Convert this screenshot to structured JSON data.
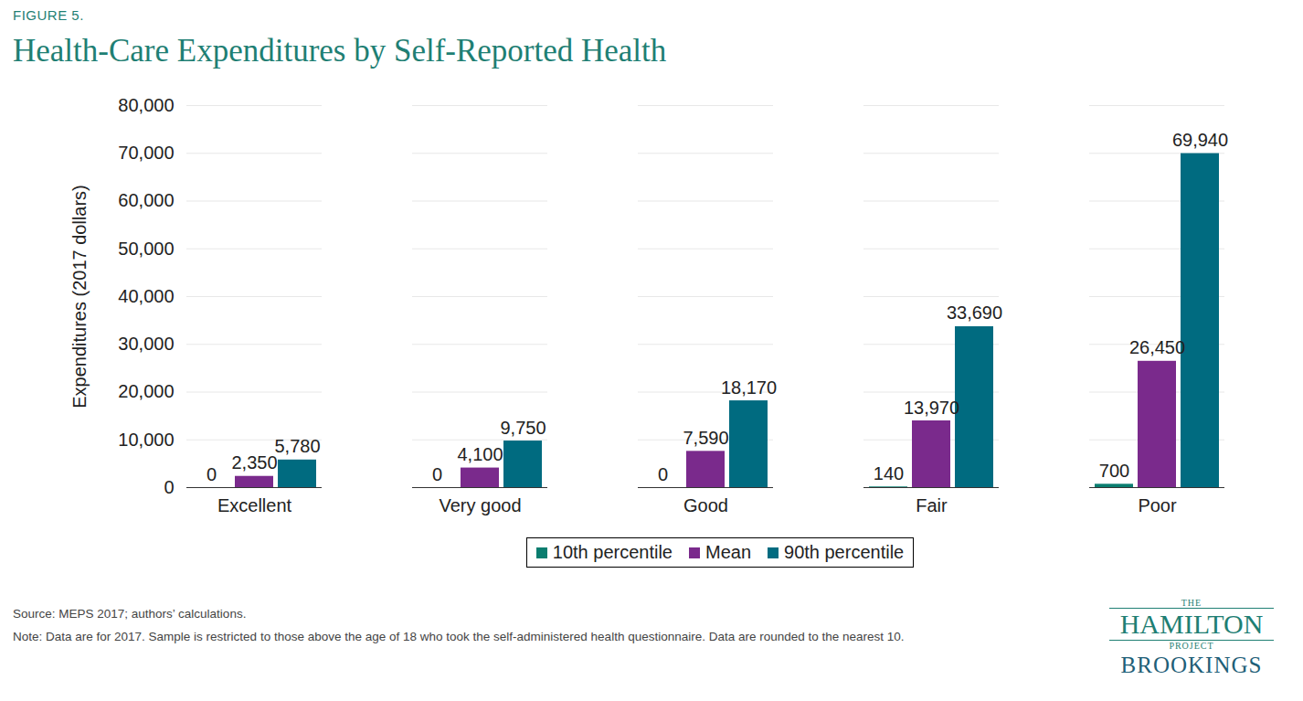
{
  "chart_data": {
    "type": "bar",
    "figure_label": "FIGURE 5.",
    "title": "Health-Care Expenditures by Self-Reported Health",
    "y_label": "Expenditures (2017 dollars)",
    "categories": [
      "Excellent",
      "Very good",
      "Good",
      "Fair",
      "Poor"
    ],
    "series": [
      {
        "name": "10th percentile",
        "color": "#0a7d6f",
        "values": [
          0,
          0,
          0,
          140,
          700
        ],
        "value_labels": [
          "0",
          "0",
          "0",
          "140",
          "700"
        ]
      },
      {
        "name": "Mean",
        "color": "#7a2a8c",
        "values": [
          2350,
          4100,
          7590,
          13970,
          26450
        ],
        "value_labels": [
          "2,350",
          "4,100",
          "7,590",
          "13,970",
          "26,450"
        ]
      },
      {
        "name": "90th percentile",
        "color": "#006b80",
        "values": [
          5780,
          9750,
          18170,
          33690,
          69940
        ],
        "value_labels": [
          "5,780",
          "9,750",
          "18,170",
          "33,690",
          "69,940"
        ]
      }
    ],
    "ylim": [
      0,
      80000
    ],
    "yticks": [
      0,
      {
        "value": 10000,
        "label": "10,000"
      },
      {
        "value": 20000,
        "label": "20,000"
      },
      {
        "value": 30000,
        "label": "30,000"
      },
      {
        "value": 40000,
        "label": "40,000"
      },
      {
        "value": 50000,
        "label": "50,000"
      },
      {
        "value": 60000,
        "label": "60,000"
      },
      {
        "value": 70000,
        "label": "70,000"
      },
      {
        "value": 80000,
        "label": "80,000"
      }
    ],
    "grid": true,
    "legend": "bottom",
    "data_labels": true,
    "source": "Source: MEPS 2017; authors’ calculations.",
    "note": "Note: Data are for 2017. Sample is restricted to those above the age of 18 who took the self-administered health questionnaire. Data are rounded to the nearest 10.",
    "logo": [
      "THE",
      "HAMILTON",
      "PROJECT",
      "BROOKINGS"
    ]
  }
}
